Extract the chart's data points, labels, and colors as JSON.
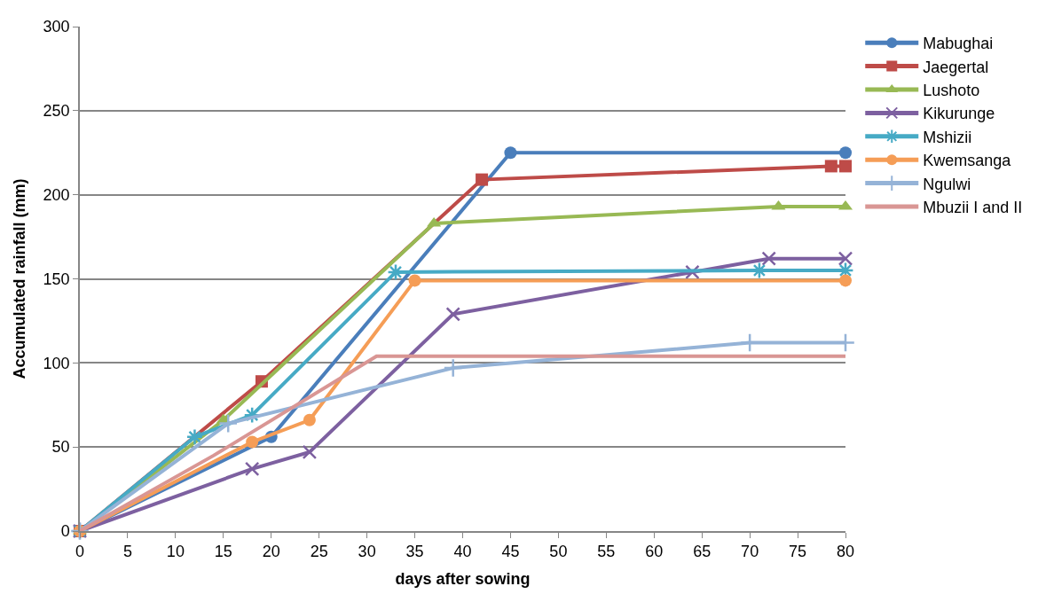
{
  "chart_data": {
    "type": "line",
    "xlabel": "days after sowing",
    "ylabel": "Accumulated rainfall (mm)",
    "xlim": [
      0,
      80
    ],
    "xticks": [
      0,
      5,
      10,
      15,
      20,
      25,
      30,
      35,
      40,
      45,
      50,
      55,
      60,
      65,
      70,
      75,
      80
    ],
    "ylim": [
      0,
      300
    ],
    "yticks": [
      0,
      50,
      100,
      150,
      200,
      250,
      300
    ],
    "grid": "y",
    "legend": "right",
    "series": [
      {
        "name": "Mabughai",
        "color": "#4a7ebb",
        "marker": "circle",
        "x": [
          0,
          20,
          45,
          80
        ],
        "values": [
          0,
          56,
          225,
          225
        ]
      },
      {
        "name": "Jaegertal",
        "color": "#be4b48",
        "marker": "square",
        "x": [
          0,
          19,
          42,
          78.5,
          80
        ],
        "values": [
          0,
          89,
          209,
          217,
          217
        ]
      },
      {
        "name": "Lushoto",
        "color": "#98b954",
        "marker": "triangle",
        "x": [
          0,
          15,
          37,
          73,
          80
        ],
        "values": [
          0,
          66,
          183,
          193,
          193
        ]
      },
      {
        "name": "Kikurunge",
        "color": "#7d60a0",
        "marker": "cross",
        "x": [
          0,
          18,
          24,
          39,
          64,
          72,
          80
        ],
        "values": [
          0,
          37,
          47,
          129,
          154,
          162,
          162
        ]
      },
      {
        "name": "Mshizii",
        "color": "#46aac5",
        "marker": "cross",
        "x": [
          0,
          12,
          18,
          33,
          71,
          80
        ],
        "values": [
          0,
          56,
          69,
          154,
          155,
          155
        ]
      },
      {
        "name": "Kwemsanga",
        "color": "#f59d56",
        "marker": "circle",
        "x": [
          0,
          18,
          24,
          35,
          80
        ],
        "values": [
          0,
          53,
          66,
          149,
          149
        ]
      },
      {
        "name": "Ngulwi",
        "color": "#95b3d7",
        "marker": "plus",
        "x": [
          0,
          15.5,
          39,
          70,
          80
        ],
        "values": [
          0,
          64,
          97,
          112,
          112
        ]
      },
      {
        "name": "Mbuzii I and II",
        "color": "#d99694",
        "marker": "none",
        "x": [
          0,
          14,
          31,
          80
        ],
        "values": [
          0,
          45,
          104,
          104
        ]
      }
    ]
  }
}
